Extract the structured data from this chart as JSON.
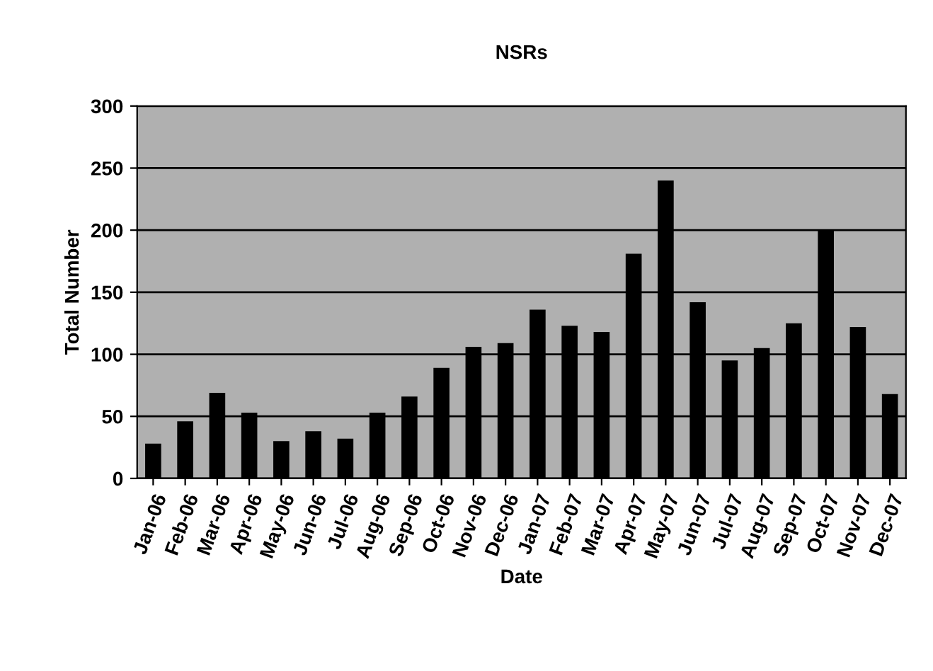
{
  "chart_data": {
    "type": "bar",
    "title": "NSRs",
    "xlabel": "Date",
    "ylabel": "Total Number",
    "categories": [
      "Jan-06",
      "Feb-06",
      "Mar-06",
      "Apr-06",
      "May-06",
      "Jun-06",
      "Jul-06",
      "Aug-06",
      "Sep-06",
      "Oct-06",
      "Nov-06",
      "Dec-06",
      "Jan-07",
      "Feb-07",
      "Mar-07",
      "Apr-07",
      "May-07",
      "Jun-07",
      "Jul-07",
      "Aug-07",
      "Sep-07",
      "Oct-07",
      "Nov-07",
      "Dec-07"
    ],
    "values": [
      28,
      46,
      69,
      53,
      30,
      38,
      32,
      53,
      66,
      89,
      106,
      109,
      136,
      123,
      118,
      181,
      240,
      142,
      95,
      105,
      125,
      200,
      122,
      68
    ],
    "color": "#000000",
    "ylim": [
      0,
      300
    ],
    "yticks": [
      0,
      50,
      100,
      150,
      200,
      250,
      300
    ],
    "grid": "y",
    "legend": false
  }
}
